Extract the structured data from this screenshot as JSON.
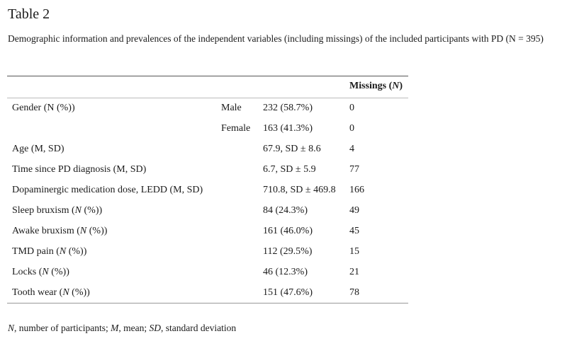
{
  "title": "Table 2",
  "caption": "Demographic information and prevalences of the independent variables (including missings) of the included participants with PD (N = 395)",
  "header": {
    "missings_prefix": "Missings (",
    "missings_italic": "N",
    "missings_suffix": ")"
  },
  "rows": [
    {
      "label": "Gender (N (%))",
      "label_italic": "",
      "label_suffix": "",
      "sub": "Male",
      "value": "232 (58.7%)",
      "missings": "0"
    },
    {
      "label": "",
      "label_italic": "",
      "label_suffix": "",
      "sub": "Female",
      "value": "163 (41.3%)",
      "missings": "0"
    },
    {
      "label": "Age (M, SD)",
      "label_italic": "",
      "label_suffix": "",
      "sub": "",
      "value": "67.9, SD ± 8.6",
      "missings": "4"
    },
    {
      "label": "Time since PD diagnosis (M, SD)",
      "label_italic": "",
      "label_suffix": "",
      "sub": "",
      "value": "6.7, SD ± 5.9",
      "missings": "77"
    },
    {
      "label": "Dopaminergic medication dose, LEDD (M, SD)",
      "label_italic": "",
      "label_suffix": "",
      "sub": "",
      "value": "710.8, SD ± 469.8",
      "missings": "166"
    },
    {
      "label": "Sleep bruxism (",
      "label_italic": "N",
      "label_suffix": " (%))",
      "sub": "",
      "value": "84 (24.3%)",
      "missings": "49"
    },
    {
      "label": "Awake bruxism (",
      "label_italic": "N",
      "label_suffix": " (%))",
      "sub": "",
      "value": "161 (46.0%)",
      "missings": "45"
    },
    {
      "label": "TMD pain (",
      "label_italic": "N",
      "label_suffix": " (%))",
      "sub": "",
      "value": "112 (29.5%)",
      "missings": "15"
    },
    {
      "label": "Locks (",
      "label_italic": "N",
      "label_suffix": " (%))",
      "sub": "",
      "value": "46 (12.3%)",
      "missings": "21"
    },
    {
      "label": "Tooth wear (",
      "label_italic": "N",
      "label_suffix": " (%))",
      "sub": "",
      "value": "151 (47.6%)",
      "missings": "78"
    }
  ],
  "footnote": {
    "n_italic": "N",
    "n_text": ", number of participants; ",
    "m_italic": "M",
    "m_text": ", mean; ",
    "sd_italic": "SD",
    "sd_text": ", standard deviation"
  }
}
